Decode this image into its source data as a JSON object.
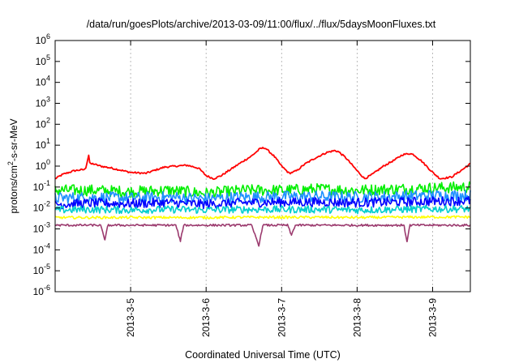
{
  "chart_data": {
    "type": "line",
    "title": "/data/run/goesPlots/archive/2013-03-09/11:00/flux/../flux/5daysMoonFluxes.txt",
    "xlabel": "Coordinated Universal Time (UTC)",
    "ylabel_base": "protons/cm",
    "ylabel_sup": "2",
    "ylabel_rest": "-s-sr-MeV",
    "y_scale": "log",
    "ylim": [
      1e-06,
      1000000.0
    ],
    "xlim": [
      4.0,
      9.5
    ],
    "x_unit": "day of March 2013",
    "y_ticks": [
      {
        "exp": -6,
        "base": "10",
        "sup": "-6"
      },
      {
        "exp": -5,
        "base": "10",
        "sup": "-5"
      },
      {
        "exp": -4,
        "base": "10",
        "sup": "-4"
      },
      {
        "exp": -3,
        "base": "10",
        "sup": "-3"
      },
      {
        "exp": -2,
        "base": "10",
        "sup": "-2"
      },
      {
        "exp": -1,
        "base": "10",
        "sup": "-1"
      },
      {
        "exp": 0,
        "base": "10",
        "sup": "0"
      },
      {
        "exp": 1,
        "base": "10",
        "sup": "1"
      },
      {
        "exp": 2,
        "base": "10",
        "sup": "2"
      },
      {
        "exp": 3,
        "base": "10",
        "sup": "3"
      },
      {
        "exp": 4,
        "base": "10",
        "sup": "4"
      },
      {
        "exp": 5,
        "base": "10",
        "sup": "5"
      },
      {
        "exp": 6,
        "base": "10",
        "sup": "6"
      }
    ],
    "x_ticks": [
      {
        "value": 5,
        "label": "2013-3-5"
      },
      {
        "value": 6,
        "label": "2013-3-6"
      },
      {
        "value": 7,
        "label": "2013-3-7"
      },
      {
        "value": 8,
        "label": "2013-3-8"
      },
      {
        "value": 9,
        "label": "2013-3-9"
      }
    ],
    "grid": true,
    "legend": "none",
    "series": [
      {
        "color": "#ff0000",
        "x": [
          4.0,
          4.1,
          4.25,
          4.4,
          4.45,
          4.46,
          4.5,
          4.6,
          4.75,
          4.9,
          5.0,
          5.2,
          5.3,
          5.45,
          5.6,
          5.75,
          5.9,
          6.0,
          6.1,
          6.2,
          6.35,
          6.5,
          6.6,
          6.72,
          6.78,
          6.9,
          7.0,
          7.1,
          7.2,
          7.3,
          7.45,
          7.6,
          7.7,
          7.75,
          7.85,
          8.0,
          8.1,
          8.2,
          8.35,
          8.5,
          8.6,
          8.7,
          8.75,
          8.85,
          9.0,
          9.1,
          9.25,
          9.4,
          9.5
        ],
        "y": [
          0.25,
          0.4,
          0.6,
          0.7,
          4.0,
          1.2,
          1.3,
          1.0,
          0.8,
          0.6,
          0.5,
          0.45,
          0.6,
          0.9,
          1.0,
          1.1,
          0.8,
          0.35,
          0.25,
          0.35,
          0.8,
          1.8,
          3.0,
          7.0,
          7.5,
          3.0,
          1.0,
          0.45,
          0.6,
          1.2,
          2.5,
          4.5,
          5.5,
          5.0,
          2.5,
          0.6,
          0.25,
          0.4,
          1.0,
          2.0,
          3.5,
          4.0,
          3.5,
          1.8,
          0.5,
          0.25,
          0.3,
          0.7,
          1.3
        ]
      },
      {
        "color": "#00ee00",
        "x": [
          4.0,
          4.5,
          5.0,
          5.5,
          6.0,
          6.5,
          7.0,
          7.5,
          8.0,
          8.5,
          9.0,
          9.5
        ],
        "y": [
          0.07,
          0.07,
          0.06,
          0.07,
          0.05,
          0.07,
          0.07,
          0.08,
          0.07,
          0.08,
          0.09,
          0.1
        ]
      },
      {
        "color": "#1e90ff",
        "x": [
          4.0,
          4.5,
          5.0,
          5.5,
          6.0,
          6.5,
          7.0,
          7.5,
          8.0,
          8.5,
          9.0,
          9.5
        ],
        "y": [
          0.03,
          0.032,
          0.03,
          0.033,
          0.028,
          0.033,
          0.035,
          0.035,
          0.033,
          0.035,
          0.04,
          0.04
        ]
      },
      {
        "color": "#0000ff",
        "x": [
          4.0,
          4.5,
          5.0,
          5.5,
          6.0,
          6.5,
          7.0,
          7.5,
          8.0,
          8.5,
          9.0,
          9.5
        ],
        "y": [
          0.015,
          0.017,
          0.016,
          0.018,
          0.015,
          0.018,
          0.019,
          0.019,
          0.018,
          0.019,
          0.021,
          0.022
        ]
      },
      {
        "color": "#00cdcd",
        "x": [
          4.0,
          4.5,
          5.0,
          5.5,
          6.0,
          6.5,
          7.0,
          7.5,
          8.0,
          8.5,
          9.0,
          9.5
        ],
        "y": [
          0.008,
          0.0085,
          0.008,
          0.0085,
          0.008,
          0.0085,
          0.0085,
          0.0085,
          0.008,
          0.0085,
          0.009,
          0.009
        ]
      },
      {
        "color": "#ffff00",
        "x": [
          4.0,
          4.5,
          5.0,
          5.5,
          6.0,
          6.5,
          7.0,
          7.5,
          8.0,
          8.5,
          9.0,
          9.5
        ],
        "y": [
          0.0035,
          0.0035,
          0.0035,
          0.0035,
          0.0035,
          0.0036,
          0.0036,
          0.0036,
          0.0035,
          0.0036,
          0.0037,
          0.0037
        ]
      },
      {
        "color": "#9b3a6e",
        "x": [
          4.0,
          4.6,
          4.66,
          4.7,
          5.0,
          5.6,
          5.66,
          5.7,
          6.0,
          6.6,
          6.7,
          6.75,
          7.0,
          7.08,
          7.13,
          7.18,
          7.5,
          8.0,
          8.5,
          8.62,
          8.66,
          8.7,
          9.0,
          9.5
        ],
        "y": [
          0.0015,
          0.0015,
          0.0003,
          0.0015,
          0.0015,
          0.0015,
          0.00025,
          0.0015,
          0.0015,
          0.0015,
          0.00016,
          0.0015,
          0.0015,
          0.0015,
          0.0005,
          0.0015,
          0.0015,
          0.0015,
          0.0015,
          0.0015,
          0.00025,
          0.0015,
          0.0015,
          0.0015
        ]
      }
    ]
  }
}
